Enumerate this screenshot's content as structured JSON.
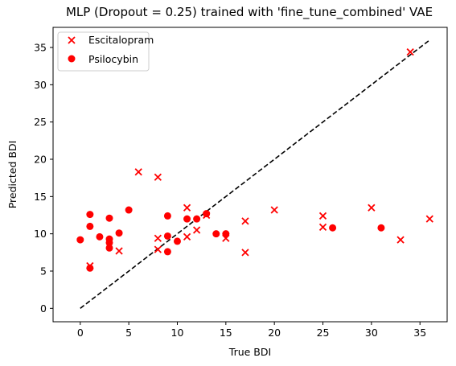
{
  "chart_data": {
    "type": "scatter",
    "title": "MLP (Dropout = 0.25) trained with 'fine_tune_combined' VAE",
    "xlabel": "True BDI",
    "ylabel": "Predicted BDI",
    "xlim": [
      -2.8,
      37.8
    ],
    "ylim": [
      -1.8,
      37.7
    ],
    "xticks": [
      0,
      5,
      10,
      15,
      20,
      25,
      30,
      35
    ],
    "yticks": [
      0,
      5,
      10,
      15,
      20,
      25,
      30,
      35
    ],
    "grid": false,
    "legend_position": "top-left",
    "reference_line": {
      "style": "dashed",
      "color": "#000000",
      "from": [
        0,
        0
      ],
      "to": [
        36,
        36
      ]
    },
    "series": [
      {
        "name": "Escitalopram",
        "marker": "x",
        "color": "#ff0000",
        "points": [
          [
            1,
            5.7
          ],
          [
            4,
            7.7
          ],
          [
            6,
            18.3
          ],
          [
            8,
            17.6
          ],
          [
            8,
            9.4
          ],
          [
            8,
            7.9
          ],
          [
            11,
            13.5
          ],
          [
            11,
            9.6
          ],
          [
            12,
            10.5
          ],
          [
            13,
            12.5
          ],
          [
            15,
            9.4
          ],
          [
            17,
            11.7
          ],
          [
            17,
            7.5
          ],
          [
            20,
            13.2
          ],
          [
            25,
            12.4
          ],
          [
            25,
            10.9
          ],
          [
            30,
            13.5
          ],
          [
            33,
            9.2
          ],
          [
            34,
            34.4
          ],
          [
            36,
            12.0
          ]
        ]
      },
      {
        "name": "Psilocybin",
        "marker": "o",
        "color": "#ff0000",
        "points": [
          [
            0,
            9.2
          ],
          [
            1,
            12.6
          ],
          [
            1,
            11.0
          ],
          [
            1,
            5.4
          ],
          [
            2,
            9.6
          ],
          [
            3,
            12.1
          ],
          [
            3,
            9.3
          ],
          [
            3,
            8.8
          ],
          [
            3,
            8.1
          ],
          [
            4,
            10.1
          ],
          [
            5,
            13.2
          ],
          [
            9,
            12.4
          ],
          [
            9,
            9.7
          ],
          [
            9,
            7.6
          ],
          [
            10,
            9.0
          ],
          [
            11,
            12.0
          ],
          [
            12,
            12.0
          ],
          [
            13,
            12.7
          ],
          [
            14,
            10.0
          ],
          [
            15,
            10.0
          ],
          [
            26,
            10.8
          ],
          [
            31,
            10.8
          ]
        ]
      }
    ]
  }
}
